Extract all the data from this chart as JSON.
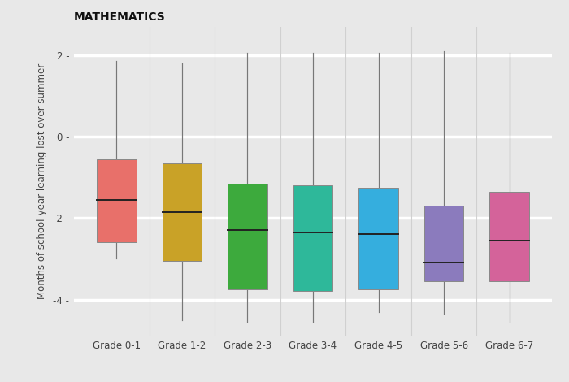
{
  "title": "MATHEMATICS",
  "ylabel": "Months of school-year learning lost over summer",
  "categories": [
    "Grade 0-1",
    "Grade 1-2",
    "Grade 2-3",
    "Grade 3-4",
    "Grade 4-5",
    "Grade 5-6",
    "Grade 6-7"
  ],
  "colors": [
    "#E8706A",
    "#C9A227",
    "#3DAA3D",
    "#2EB89A",
    "#35AEDE",
    "#8B7BBD",
    "#D4639A"
  ],
  "boxes": [
    {
      "q1": -2.6,
      "median": -1.55,
      "q3": -0.55,
      "whisker_low": -3.0,
      "whisker_high": 1.85
    },
    {
      "q1": -3.05,
      "median": -1.85,
      "q3": -0.65,
      "whisker_low": -4.5,
      "whisker_high": 1.8
    },
    {
      "q1": -3.75,
      "median": -2.3,
      "q3": -1.15,
      "whisker_low": -4.55,
      "whisker_high": 2.05
    },
    {
      "q1": -3.8,
      "median": -2.35,
      "q3": -1.2,
      "whisker_low": -4.55,
      "whisker_high": 2.05
    },
    {
      "q1": -3.75,
      "median": -2.4,
      "q3": -1.25,
      "whisker_low": -4.3,
      "whisker_high": 2.05
    },
    {
      "q1": -3.55,
      "median": -3.1,
      "q3": -1.7,
      "whisker_low": -4.35,
      "whisker_high": 2.1
    },
    {
      "q1": -3.55,
      "median": -2.55,
      "q3": -1.35,
      "whisker_low": -4.55,
      "whisker_high": 2.05
    }
  ],
  "ylim": [
    -4.9,
    2.7
  ],
  "yticks": [
    -4,
    -2,
    0,
    2
  ],
  "ytick_labels": [
    "-4",
    "-2",
    "0",
    "2"
  ],
  "background_color": "#E8E8E8",
  "grid_color": "#FFFFFF",
  "box_width": 0.6,
  "title_fontsize": 10,
  "label_fontsize": 8.5,
  "tick_fontsize": 8.5
}
